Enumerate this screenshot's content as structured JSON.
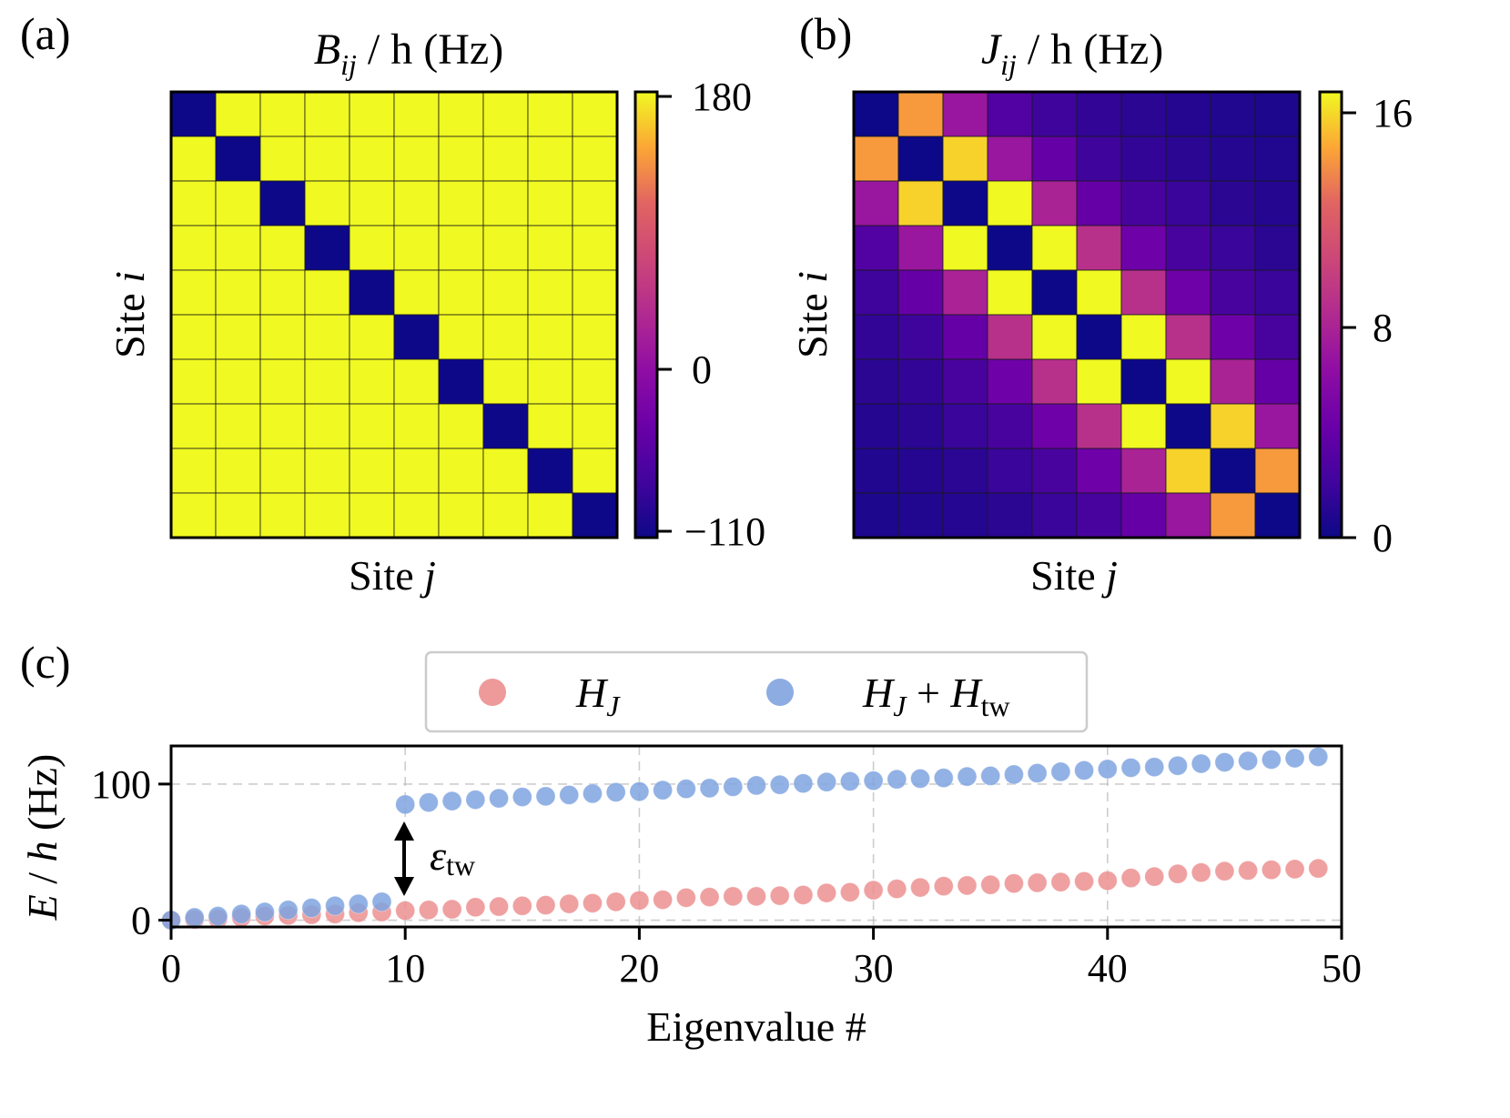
{
  "panels": {
    "a": {
      "letter": "(a)",
      "title_main": "B",
      "title_sub": "ij",
      "title_tail": " / h (Hz)",
      "xlabel_main": "Site ",
      "xlabel_var": "j",
      "ylabel_main": "Site ",
      "ylabel_var": "i",
      "colorbar_ticks": [
        "180",
        "0",
        "−110"
      ]
    },
    "b": {
      "letter": "(b)",
      "title_main": "J",
      "title_sub": "ij",
      "title_tail": " / h (Hz)",
      "xlabel_main": "Site ",
      "xlabel_var": "j",
      "ylabel_main": "Site ",
      "ylabel_var": "i",
      "colorbar_ticks": [
        "16",
        "8",
        "0"
      ]
    },
    "c": {
      "letter": "(c)",
      "legend": {
        "s1_main": "H",
        "s1_sub": "J",
        "s2_main": "H",
        "s2_sub": "J",
        "s2_plus": " + ",
        "s2_main2": "H",
        "s2_sub2": "tw"
      },
      "annotation_main": "ε",
      "annotation_sub": "tw",
      "xlabel": "Eigenvalue #",
      "ylabel": "E / h (Hz)",
      "xticks": [
        "0",
        "10",
        "20",
        "30",
        "40",
        "50"
      ],
      "yticks": [
        "0",
        "100"
      ]
    }
  },
  "colors": {
    "plasma_low": "#0d0887",
    "plasma_high": "#f0f921",
    "series_HJ": "#ec8f8f",
    "series_HJ_tw": "#7fa3df"
  },
  "chart_data": [
    {
      "type": "heatmap",
      "title": "B_ij / h (Hz)",
      "xlabel": "Site j",
      "ylabel": "Site i",
      "colormap": "plasma",
      "vmin": -110,
      "vmax": 180,
      "colorbar_ticks": [
        180,
        0,
        -110
      ],
      "values": [
        [
          -110,
          180,
          180,
          180,
          180,
          180,
          180,
          180,
          180,
          180
        ],
        [
          180,
          -110,
          180,
          180,
          180,
          180,
          180,
          180,
          180,
          180
        ],
        [
          180,
          180,
          -110,
          180,
          180,
          180,
          180,
          180,
          180,
          180
        ],
        [
          180,
          180,
          180,
          -110,
          180,
          180,
          180,
          180,
          180,
          180
        ],
        [
          180,
          180,
          180,
          180,
          -110,
          180,
          180,
          180,
          180,
          180
        ],
        [
          180,
          180,
          180,
          180,
          180,
          -110,
          180,
          180,
          180,
          180
        ],
        [
          180,
          180,
          180,
          180,
          180,
          180,
          -110,
          180,
          180,
          180
        ],
        [
          180,
          180,
          180,
          180,
          180,
          180,
          180,
          -110,
          180,
          180
        ],
        [
          180,
          180,
          180,
          180,
          180,
          180,
          180,
          180,
          -110,
          180
        ],
        [
          180,
          180,
          180,
          180,
          180,
          180,
          180,
          180,
          180,
          -110
        ]
      ]
    },
    {
      "type": "heatmap",
      "title": "J_ij / h (Hz)",
      "xlabel": "Site j",
      "ylabel": "Site i",
      "colormap": "plasma",
      "vmin": 0,
      "vmax": 17,
      "colorbar_ticks": [
        16,
        8,
        0
      ],
      "values": [
        [
          0,
          14.5,
          7,
          3,
          2,
          1.5,
          1.2,
          1,
          0.8,
          0.6
        ],
        [
          14.5,
          0,
          16,
          7,
          4,
          2,
          1.5,
          1.2,
          1,
          0.8
        ],
        [
          7,
          16,
          0,
          17,
          8,
          4,
          2.5,
          1.8,
          1.2,
          1
        ],
        [
          3,
          7,
          17,
          0,
          17,
          9,
          4.5,
          2.5,
          1.8,
          1.2
        ],
        [
          2,
          4,
          8,
          17,
          0,
          17,
          9,
          4.5,
          2.5,
          1.8
        ],
        [
          1.5,
          2,
          4,
          9,
          17,
          0,
          17,
          9,
          4.5,
          2.5
        ],
        [
          1.2,
          1.5,
          2.5,
          4.5,
          9,
          17,
          0,
          17,
          8,
          4
        ],
        [
          1,
          1.2,
          1.8,
          2.5,
          4.5,
          9,
          17,
          0,
          16,
          7
        ],
        [
          0.8,
          1,
          1.2,
          1.8,
          2.5,
          4.5,
          8,
          16,
          0,
          14.5
        ],
        [
          0.6,
          0.8,
          1,
          1.2,
          1.8,
          2.5,
          4,
          7,
          14.5,
          0
        ]
      ]
    },
    {
      "type": "scatter",
      "xlabel": "Eigenvalue #",
      "ylabel": "E / h (Hz)",
      "xlim": [
        0,
        50
      ],
      "ylim": [
        -5,
        128
      ],
      "xticks": [
        0,
        10,
        20,
        30,
        40,
        50
      ],
      "yticks": [
        0,
        100
      ],
      "grid": true,
      "legend_position": "top-center",
      "x": [
        0,
        1,
        2,
        3,
        4,
        5,
        6,
        7,
        8,
        9,
        10,
        11,
        12,
        13,
        14,
        15,
        16,
        17,
        18,
        19,
        20,
        21,
        22,
        23,
        24,
        25,
        26,
        27,
        28,
        29,
        30,
        31,
        32,
        33,
        34,
        35,
        36,
        37,
        38,
        39,
        40,
        41,
        42,
        43,
        44,
        45,
        46,
        47,
        48,
        49
      ],
      "series": [
        {
          "name": "H_J",
          "values": [
            0,
            0.5,
            1,
            2,
            3,
            3.5,
            4,
            4.5,
            5.5,
            6,
            7,
            7.5,
            8,
            9.5,
            10,
            10.5,
            11,
            12,
            12.5,
            13.5,
            14.5,
            15,
            16.5,
            17,
            17.5,
            17.5,
            18,
            18.5,
            20,
            20.5,
            22,
            23,
            24,
            25,
            25.5,
            26,
            27,
            27.5,
            28,
            28.5,
            29,
            31,
            32,
            34,
            35,
            36,
            36.5,
            37,
            37.5,
            38
          ]
        },
        {
          "name": "H_J + H_tw",
          "values": [
            0,
            2,
            3,
            4.5,
            6,
            7.5,
            9,
            10.5,
            12,
            13.5,
            85,
            86.5,
            87.5,
            88.5,
            89.5,
            90.5,
            91,
            92,
            93,
            94,
            94.5,
            95.5,
            96.5,
            97,
            98,
            99,
            99.5,
            100.5,
            101.5,
            102,
            102.5,
            103.5,
            104,
            104.5,
            105.5,
            106,
            107,
            108,
            109,
            110,
            111,
            112,
            112.5,
            113.5,
            115,
            116,
            117,
            118,
            119,
            120
          ]
        }
      ]
    }
  ]
}
